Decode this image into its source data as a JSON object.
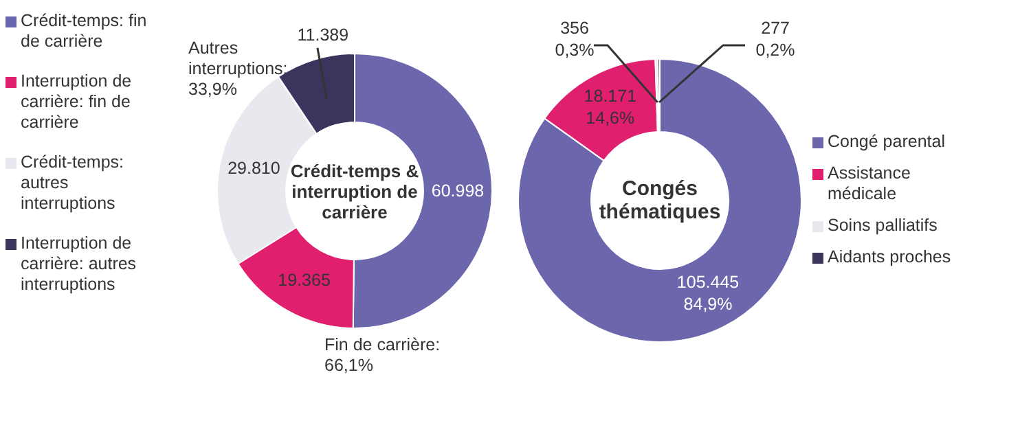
{
  "chart_data": [
    {
      "type": "donut",
      "title": "Crédit-temps & interruption de carrière",
      "categories": [
        "Crédit-temps: fin de carrière",
        "Interruption de carrière: fin de carrière",
        "Crédit-temps: autres interruptions",
        "Interruption de carrière: autres interruptions"
      ],
      "values": [
        60998,
        19365,
        29810,
        11389
      ],
      "colors": [
        "#6c66ac",
        "#e0206f",
        "#e8e8ee",
        "#3a355c"
      ],
      "value_labels": [
        "60.998",
        "19.365",
        "29.810",
        "11.389"
      ],
      "annotations": [
        "Autres interruptions: 33,9%",
        "Fin de carrière: 66,1%"
      ],
      "legend": "left"
    },
    {
      "type": "donut",
      "title": "Congés thématiques",
      "categories": [
        "Congé parental",
        "Assistance médicale",
        "Soins palliatifs",
        "Aidants proches"
      ],
      "values": [
        105445,
        18171,
        356,
        277
      ],
      "colors": [
        "#6c66ac",
        "#e0206f",
        "#e8e8ee",
        "#3a355c"
      ],
      "value_labels": [
        "105.445\n84,9%",
        "18.171\n14,6%",
        "356\n0,3%",
        "277\n0,2%"
      ],
      "legend": "right"
    }
  ]
}
